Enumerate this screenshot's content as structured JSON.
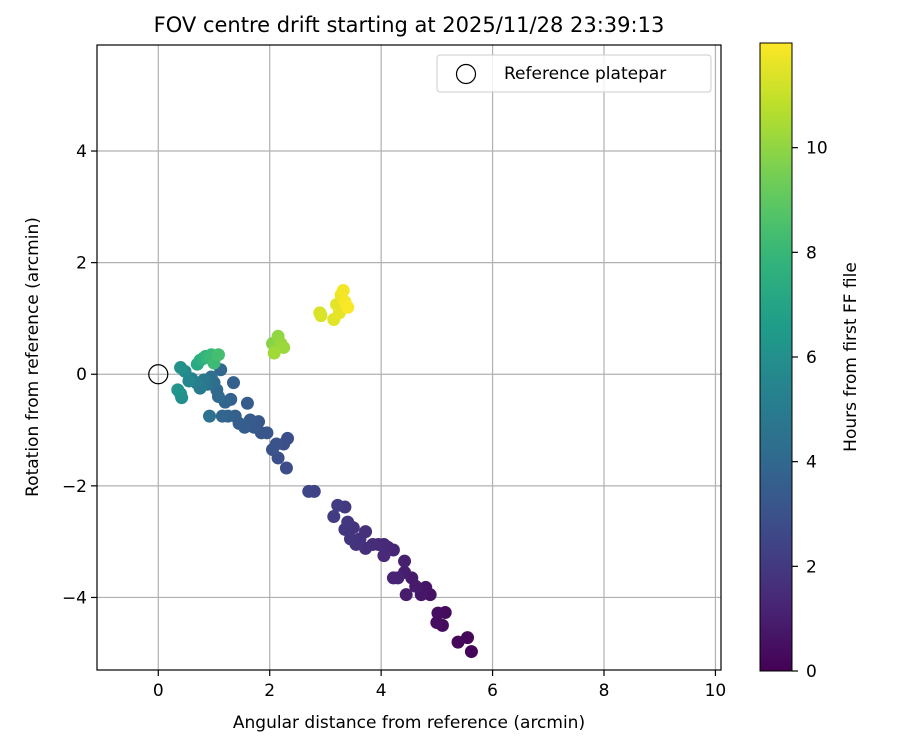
{
  "chart_data": {
    "type": "scatter",
    "title": "FOV centre drift starting at 2025/11/28 23:39:13",
    "xlabel": "Angular distance from reference (arcmin)",
    "ylabel": "Rotation from reference (arcmin)",
    "xlim": [
      -1.1,
      10.1
    ],
    "ylim": [
      -5.3,
      5.9
    ],
    "xticks": [
      0,
      2,
      4,
      6,
      8,
      10
    ],
    "yticks": [
      -4,
      -2,
      0,
      2,
      4
    ],
    "grid": true,
    "legend": {
      "position": "top-right",
      "entries": [
        "Reference platepar"
      ]
    },
    "reference_point": {
      "x": 0,
      "y": 0,
      "label": "Reference platepar"
    },
    "colorbar": {
      "label": "Hours from first FF file",
      "min": 0,
      "max": 12,
      "ticks": [
        0,
        2,
        4,
        6,
        8,
        10
      ],
      "colormap": "viridis"
    },
    "points": [
      {
        "x": 5.62,
        "y": -4.97,
        "h": 0.1
      },
      {
        "x": 5.55,
        "y": -4.72,
        "h": 0.2
      },
      {
        "x": 5.38,
        "y": -4.8,
        "h": 0.2
      },
      {
        "x": 5.15,
        "y": -4.27,
        "h": 0.35
      },
      {
        "x": 5.1,
        "y": -4.5,
        "h": 0.35
      },
      {
        "x": 5.0,
        "y": -4.45,
        "h": 0.45
      },
      {
        "x": 5.02,
        "y": -4.28,
        "h": 0.45
      },
      {
        "x": 4.88,
        "y": -3.95,
        "h": 0.6
      },
      {
        "x": 4.8,
        "y": -3.82,
        "h": 0.7
      },
      {
        "x": 4.72,
        "y": -3.95,
        "h": 0.75
      },
      {
        "x": 4.62,
        "y": -3.8,
        "h": 0.85
      },
      {
        "x": 4.55,
        "y": -3.65,
        "h": 0.9
      },
      {
        "x": 4.45,
        "y": -3.95,
        "h": 0.95
      },
      {
        "x": 4.42,
        "y": -3.55,
        "h": 1.0
      },
      {
        "x": 4.42,
        "y": -3.35,
        "h": 1.05
      },
      {
        "x": 4.3,
        "y": -3.65,
        "h": 1.15
      },
      {
        "x": 4.22,
        "y": -3.65,
        "h": 1.2
      },
      {
        "x": 4.22,
        "y": -3.15,
        "h": 1.25
      },
      {
        "x": 4.12,
        "y": -3.1,
        "h": 1.3
      },
      {
        "x": 4.05,
        "y": -3.05,
        "h": 1.35
      },
      {
        "x": 4.05,
        "y": -3.25,
        "h": 1.4
      },
      {
        "x": 3.95,
        "y": -3.05,
        "h": 1.45
      },
      {
        "x": 3.85,
        "y": -3.05,
        "h": 1.5
      },
      {
        "x": 3.72,
        "y": -3.12,
        "h": 1.6
      },
      {
        "x": 3.72,
        "y": -2.82,
        "h": 1.65
      },
      {
        "x": 3.62,
        "y": -2.95,
        "h": 1.7
      },
      {
        "x": 3.55,
        "y": -3.05,
        "h": 1.75
      },
      {
        "x": 3.5,
        "y": -2.75,
        "h": 1.8
      },
      {
        "x": 3.45,
        "y": -2.95,
        "h": 1.85
      },
      {
        "x": 3.4,
        "y": -2.65,
        "h": 1.9
      },
      {
        "x": 3.35,
        "y": -2.78,
        "h": 1.95
      },
      {
        "x": 3.35,
        "y": -2.38,
        "h": 2.0
      },
      {
        "x": 3.22,
        "y": -2.35,
        "h": 2.1
      },
      {
        "x": 3.15,
        "y": -2.55,
        "h": 2.15
      },
      {
        "x": 2.8,
        "y": -2.1,
        "h": 2.4
      },
      {
        "x": 2.7,
        "y": -2.1,
        "h": 2.5
      },
      {
        "x": 2.3,
        "y": -1.68,
        "h": 2.8
      },
      {
        "x": 2.32,
        "y": -1.15,
        "h": 2.85
      },
      {
        "x": 2.25,
        "y": -1.25,
        "h": 2.9
      },
      {
        "x": 2.15,
        "y": -1.5,
        "h": 2.95
      },
      {
        "x": 2.12,
        "y": -1.25,
        "h": 3.0
      },
      {
        "x": 2.05,
        "y": -1.35,
        "h": 3.05
      },
      {
        "x": 1.95,
        "y": -1.05,
        "h": 3.15
      },
      {
        "x": 1.85,
        "y": -1.05,
        "h": 3.2
      },
      {
        "x": 1.8,
        "y": -0.85,
        "h": 3.3
      },
      {
        "x": 1.72,
        "y": -0.95,
        "h": 3.35
      },
      {
        "x": 1.65,
        "y": -0.82,
        "h": 3.4
      },
      {
        "x": 1.6,
        "y": -0.52,
        "h": 3.45
      },
      {
        "x": 1.55,
        "y": -0.95,
        "h": 3.5
      },
      {
        "x": 1.45,
        "y": -0.88,
        "h": 3.55
      },
      {
        "x": 1.38,
        "y": -0.75,
        "h": 3.6
      },
      {
        "x": 1.35,
        "y": -0.15,
        "h": 3.65
      },
      {
        "x": 1.3,
        "y": -0.45,
        "h": 3.7
      },
      {
        "x": 1.25,
        "y": -0.75,
        "h": 3.8
      },
      {
        "x": 1.2,
        "y": -0.5,
        "h": 3.85
      },
      {
        "x": 1.15,
        "y": -0.75,
        "h": 3.9
      },
      {
        "x": 1.12,
        "y": 0.08,
        "h": 4.0
      },
      {
        "x": 1.08,
        "y": -0.4,
        "h": 4.1
      },
      {
        "x": 1.05,
        "y": -0.28,
        "h": 4.15
      },
      {
        "x": 1.0,
        "y": -0.15,
        "h": 4.3
      },
      {
        "x": 0.95,
        "y": -0.05,
        "h": 4.4
      },
      {
        "x": 0.92,
        "y": -0.75,
        "h": 4.5
      },
      {
        "x": 0.88,
        "y": -0.18,
        "h": 4.6
      },
      {
        "x": 0.82,
        "y": -0.1,
        "h": 4.75
      },
      {
        "x": 0.75,
        "y": -0.25,
        "h": 4.9
      },
      {
        "x": 0.68,
        "y": -0.15,
        "h": 5.1
      },
      {
        "x": 0.6,
        "y": -0.08,
        "h": 5.3
      },
      {
        "x": 0.55,
        "y": -0.12,
        "h": 5.5
      },
      {
        "x": 0.48,
        "y": 0.05,
        "h": 5.7
      },
      {
        "x": 0.42,
        "y": -0.42,
        "h": 5.9
      },
      {
        "x": 0.4,
        "y": -0.35,
        "h": 6.0
      },
      {
        "x": 0.4,
        "y": 0.12,
        "h": 6.1
      },
      {
        "x": 0.35,
        "y": -0.28,
        "h": 6.2
      },
      {
        "x": 0.7,
        "y": 0.18,
        "h": 7.2
      },
      {
        "x": 0.75,
        "y": 0.25,
        "h": 7.4
      },
      {
        "x": 0.8,
        "y": 0.28,
        "h": 7.6
      },
      {
        "x": 0.85,
        "y": 0.32,
        "h": 7.8
      },
      {
        "x": 0.9,
        "y": 0.3,
        "h": 8.0
      },
      {
        "x": 0.95,
        "y": 0.35,
        "h": 8.1
      },
      {
        "x": 1.0,
        "y": 0.2,
        "h": 8.2
      },
      {
        "x": 1.08,
        "y": 0.35,
        "h": 8.4
      },
      {
        "x": 2.05,
        "y": 0.55,
        "h": 9.8
      },
      {
        "x": 2.1,
        "y": 0.45,
        "h": 9.9
      },
      {
        "x": 2.15,
        "y": 0.68,
        "h": 10.0
      },
      {
        "x": 2.2,
        "y": 0.55,
        "h": 10.1
      },
      {
        "x": 2.25,
        "y": 0.48,
        "h": 10.2
      },
      {
        "x": 2.08,
        "y": 0.38,
        "h": 10.3
      },
      {
        "x": 2.9,
        "y": 1.1,
        "h": 11.3
      },
      {
        "x": 2.92,
        "y": 1.05,
        "h": 11.35
      },
      {
        "x": 3.15,
        "y": 0.98,
        "h": 11.5
      },
      {
        "x": 3.2,
        "y": 1.25,
        "h": 11.55
      },
      {
        "x": 3.25,
        "y": 1.1,
        "h": 11.6
      },
      {
        "x": 3.28,
        "y": 1.42,
        "h": 11.7
      },
      {
        "x": 3.32,
        "y": 1.5,
        "h": 11.8
      },
      {
        "x": 3.35,
        "y": 1.3,
        "h": 11.85
      },
      {
        "x": 3.4,
        "y": 1.2,
        "h": 11.95
      }
    ]
  }
}
